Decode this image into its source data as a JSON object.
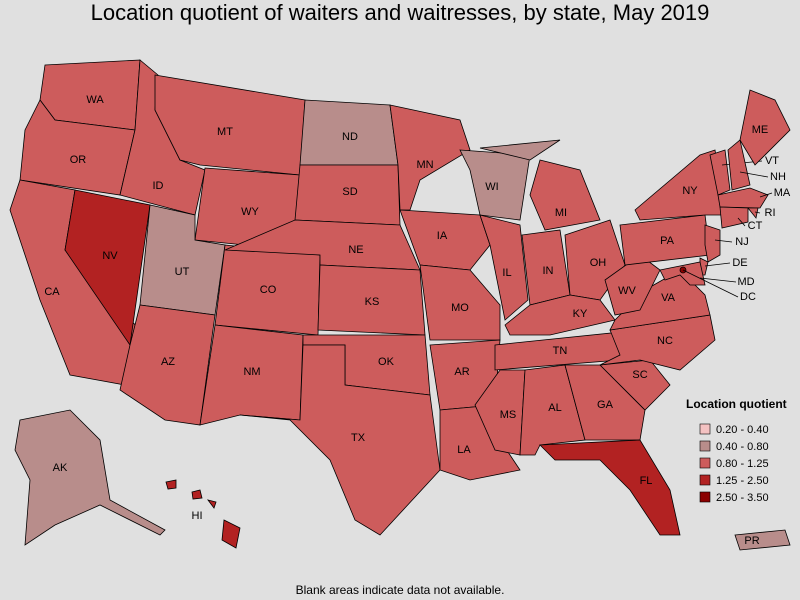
{
  "title": "Location quotient of waiters and waitresses, by state, May 2019",
  "note": "Blank areas indicate data not available.",
  "legend": {
    "title": "Location quotient",
    "items": [
      {
        "label": "0.20 - 0.40",
        "color": "#f4c2c2"
      },
      {
        "label": "0.40 - 0.80",
        "color": "#b88d8b"
      },
      {
        "label": "0.80 - 1.25",
        "color": "#cd5c5c"
      },
      {
        "label": "1.25 - 2.50",
        "color": "#b22222"
      },
      {
        "label": "2.50 - 3.50",
        "color": "#8b0000"
      }
    ]
  },
  "states": [
    {
      "label": "WA",
      "color": "#cd5c5c"
    },
    {
      "label": "OR",
      "color": "#cd5c5c"
    },
    {
      "label": "CA",
      "color": "#cd5c5c"
    },
    {
      "label": "NV",
      "color": "#b22222"
    },
    {
      "label": "ID",
      "color": "#cd5c5c"
    },
    {
      "label": "MT",
      "color": "#cd5c5c"
    },
    {
      "label": "WY",
      "color": "#cd5c5c"
    },
    {
      "label": "UT",
      "color": "#b88d8b"
    },
    {
      "label": "AZ",
      "color": "#cd5c5c"
    },
    {
      "label": "CO",
      "color": "#cd5c5c"
    },
    {
      "label": "NM",
      "color": "#cd5c5c"
    },
    {
      "label": "ND",
      "color": "#b88d8b"
    },
    {
      "label": "SD",
      "color": "#cd5c5c"
    },
    {
      "label": "NE",
      "color": "#cd5c5c"
    },
    {
      "label": "KS",
      "color": "#cd5c5c"
    },
    {
      "label": "OK",
      "color": "#cd5c5c"
    },
    {
      "label": "TX",
      "color": "#cd5c5c"
    },
    {
      "label": "MN",
      "color": "#cd5c5c"
    },
    {
      "label": "IA",
      "color": "#cd5c5c"
    },
    {
      "label": "MO",
      "color": "#cd5c5c"
    },
    {
      "label": "AR",
      "color": "#cd5c5c"
    },
    {
      "label": "LA",
      "color": "#cd5c5c"
    },
    {
      "label": "WI",
      "color": "#b88d8b"
    },
    {
      "label": "IL",
      "color": "#cd5c5c"
    },
    {
      "label": "MI",
      "color": "#cd5c5c"
    },
    {
      "label": "IN",
      "color": "#cd5c5c"
    },
    {
      "label": "OH",
      "color": "#cd5c5c"
    },
    {
      "label": "KY",
      "color": "#cd5c5c"
    },
    {
      "label": "TN",
      "color": "#cd5c5c"
    },
    {
      "label": "MS",
      "color": "#cd5c5c"
    },
    {
      "label": "AL",
      "color": "#cd5c5c"
    },
    {
      "label": "GA",
      "color": "#cd5c5c"
    },
    {
      "label": "FL",
      "color": "#b22222"
    },
    {
      "label": "SC",
      "color": "#cd5c5c"
    },
    {
      "label": "NC",
      "color": "#cd5c5c"
    },
    {
      "label": "VA",
      "color": "#cd5c5c"
    },
    {
      "label": "WV",
      "color": "#cd5c5c"
    },
    {
      "label": "PA",
      "color": "#cd5c5c"
    },
    {
      "label": "NY",
      "color": "#cd5c5c"
    },
    {
      "label": "VT",
      "color": "#cd5c5c"
    },
    {
      "label": "NH",
      "color": "#cd5c5c"
    },
    {
      "label": "ME",
      "color": "#cd5c5c"
    },
    {
      "label": "MA",
      "color": "#cd5c5c"
    },
    {
      "label": "RI",
      "color": "#cd5c5c"
    },
    {
      "label": "CT",
      "color": "#cd5c5c"
    },
    {
      "label": "NJ",
      "color": "#cd5c5c"
    },
    {
      "label": "DE",
      "color": "#cd5c5c"
    },
    {
      "label": "MD",
      "color": "#cd5c5c"
    },
    {
      "label": "DC",
      "color": "#8b0000"
    },
    {
      "label": "AK",
      "color": "#b88d8b"
    },
    {
      "label": "HI",
      "color": "#b22222"
    },
    {
      "label": "PR",
      "color": "#b88d8b"
    }
  ]
}
